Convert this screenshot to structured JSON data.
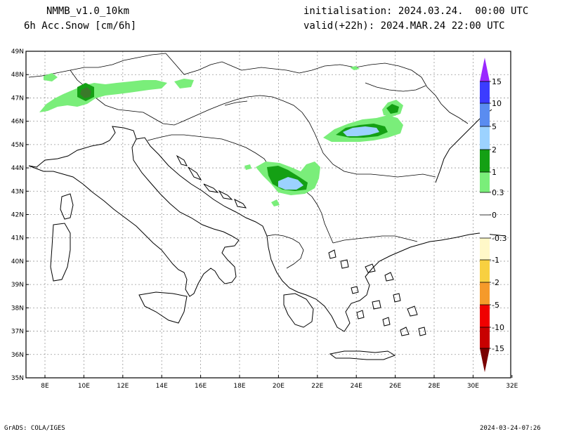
{
  "header": {
    "model": "NMMB_v1.0_10km",
    "field": "6h Acc.Snow [cm/6h]",
    "init": "initialisation: 2024.03.24.  00:00 UTC",
    "valid": "valid(+22h): 2024.MAR.24 22:00 UTC"
  },
  "axes": {
    "lat_labels": [
      "49N",
      "48N",
      "47N",
      "46N",
      "45N",
      "44N",
      "43N",
      "42N",
      "41N",
      "40N",
      "39N",
      "38N",
      "37N",
      "36N",
      "35N"
    ],
    "lon_labels": [
      "8E",
      "10E",
      "12E",
      "14E",
      "16E",
      "18E",
      "20E",
      "22E",
      "24E",
      "26E",
      "28E",
      "30E",
      "32E"
    ]
  },
  "legend": {
    "labels": [
      "15",
      "10",
      "5",
      "2",
      "1",
      "0.3",
      "0",
      "-0.3",
      "-1",
      "-2",
      "-5",
      "-10",
      "-15"
    ],
    "colors": {
      "violet": "#9a28ff",
      "blue_dark": "#3c3cff",
      "blue_mid": "#5a8cf0",
      "blue_light": "#9cd2ff",
      "green_dark": "#14a014",
      "green_light": "#7aee7a",
      "cream": "#fff8c8",
      "yellow": "#f8d040",
      "orange": "#f59a2a",
      "orange_dark": "#f07018",
      "red": "#f00000",
      "red_dark": "#c80000",
      "maroon": "#7a0000"
    }
  },
  "footer": {
    "credit": "GrADS: COLA/IGES",
    "timestamp": "2024-03-24-07:26"
  }
}
